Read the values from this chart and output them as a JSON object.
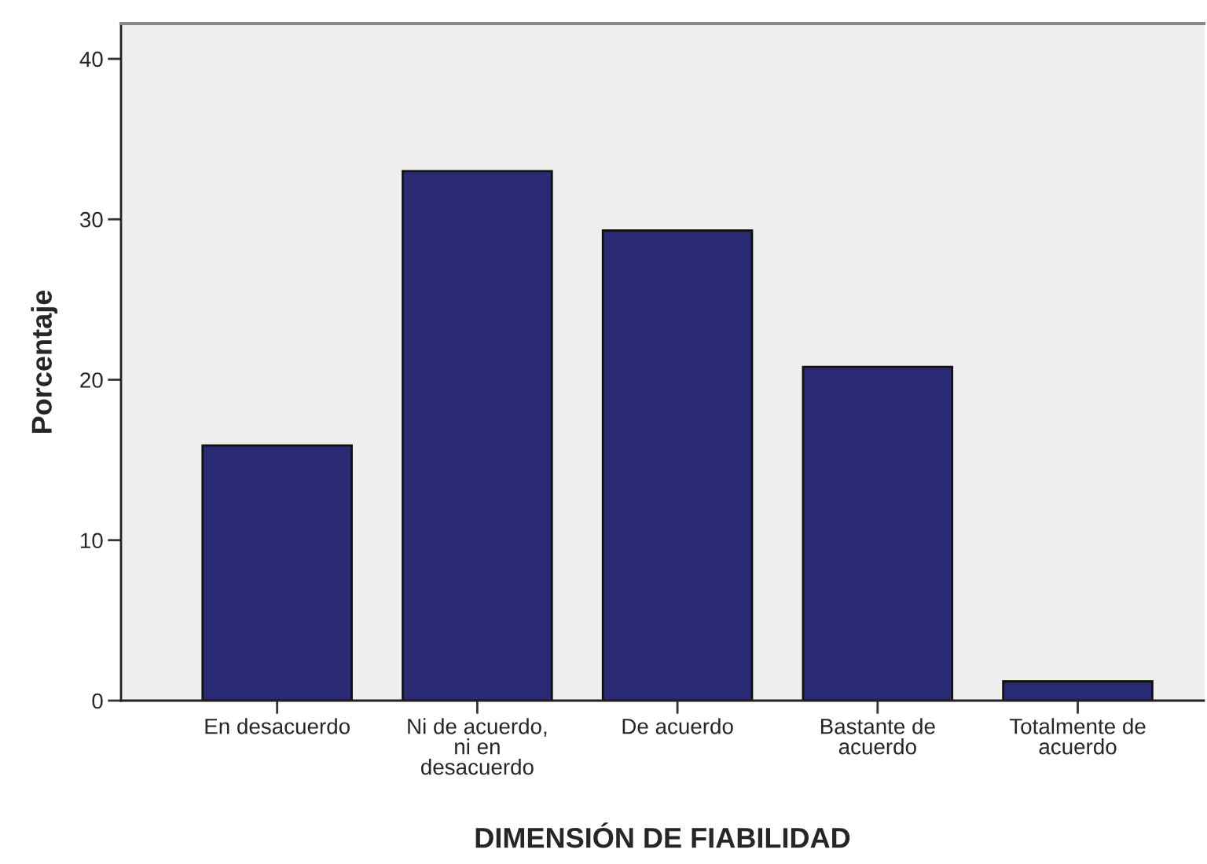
{
  "chart_data": {
    "type": "bar",
    "xlabel": "DIMENSIÓN DE FIABILIDAD",
    "ylabel": "Porcentaje",
    "categories": [
      "En desacuerdo",
      "Ni de acuerdo,\nni en\ndesacuerdo",
      "De acuerdo",
      "Bastante de\nacuerdo",
      "Totalmente de\nacuerdo"
    ],
    "values": [
      15.9,
      33.0,
      29.3,
      20.8,
      1.2
    ],
    "color": "#292a73",
    "ylim": [
      0,
      42.2
    ],
    "yticks": [
      0,
      10,
      20,
      30,
      40
    ],
    "grid": false
  }
}
